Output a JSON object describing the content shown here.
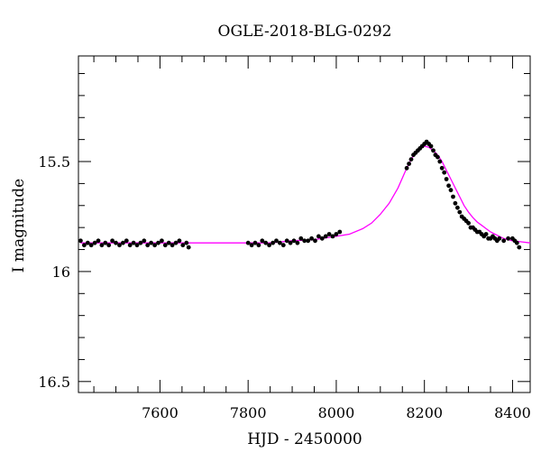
{
  "chart_data": {
    "type": "scatter",
    "title": "OGLE-2018-BLG-0292",
    "xlabel": "HJD - 2450000",
    "ylabel": "I magnitude",
    "xlim": [
      7415,
      8440
    ],
    "ylim": [
      16.55,
      15.02
    ],
    "y_inverted": true,
    "grid": false,
    "legend": "none",
    "x_ticks": [
      "7600",
      "7800",
      "8000",
      "8200",
      "8400"
    ],
    "x_tick_values": [
      7600,
      7800,
      8000,
      8200,
      8400
    ],
    "y_ticks": [
      "15.5",
      "16",
      "16.5"
    ],
    "y_tick_values": [
      15.5,
      16.0,
      16.5
    ],
    "colors": {
      "data": "#000000",
      "model": "#ff00ff",
      "frame": "#000000"
    },
    "series": [
      {
        "kind": "points",
        "x": [
          7420,
          7428,
          7436,
          7444,
          7452,
          7460,
          7468,
          7476,
          7484,
          7492,
          7500,
          7508,
          7516,
          7524,
          7532,
          7540,
          7548,
          7556,
          7564,
          7572,
          7580,
          7588,
          7596,
          7604,
          7612,
          7620,
          7628,
          7636,
          7644,
          7652,
          7660,
          7665,
          7800,
          7808,
          7816,
          7824,
          7832,
          7840,
          7848,
          7856,
          7864,
          7872,
          7880,
          7888,
          7896,
          7904,
          7912,
          7920,
          7928,
          7936,
          7944,
          7952,
          7960,
          7968,
          7976,
          7984,
          7992,
          8000,
          8008,
          8160,
          8165,
          8170,
          8175,
          8180,
          8185,
          8190,
          8195,
          8200,
          8205,
          8210,
          8215,
          8220,
          8225,
          8230,
          8235,
          8240,
          8245,
          8250,
          8255,
          8260,
          8265,
          8270,
          8275,
          8280,
          8285,
          8290,
          8295,
          8300,
          8305,
          8310,
          8315,
          8320,
          8325,
          8330,
          8335,
          8340,
          8345,
          8350,
          8355,
          8360,
          8365,
          8370,
          8380,
          8390,
          8400,
          8405,
          8410,
          8415
        ],
        "y": [
          15.86,
          15.88,
          15.87,
          15.88,
          15.87,
          15.86,
          15.88,
          15.87,
          15.88,
          15.86,
          15.87,
          15.88,
          15.87,
          15.86,
          15.88,
          15.87,
          15.88,
          15.87,
          15.86,
          15.88,
          15.87,
          15.88,
          15.87,
          15.86,
          15.88,
          15.87,
          15.88,
          15.87,
          15.86,
          15.88,
          15.87,
          15.89,
          15.87,
          15.88,
          15.87,
          15.88,
          15.86,
          15.87,
          15.88,
          15.87,
          15.86,
          15.87,
          15.88,
          15.86,
          15.87,
          15.86,
          15.87,
          15.85,
          15.86,
          15.86,
          15.85,
          15.86,
          15.84,
          15.85,
          15.84,
          15.83,
          15.84,
          15.83,
          15.82,
          15.53,
          15.51,
          15.49,
          15.47,
          15.46,
          15.45,
          15.44,
          15.43,
          15.42,
          15.41,
          15.42,
          15.43,
          15.45,
          15.47,
          15.48,
          15.5,
          15.53,
          15.55,
          15.58,
          15.61,
          15.63,
          15.66,
          15.69,
          15.71,
          15.73,
          15.75,
          15.76,
          15.77,
          15.78,
          15.8,
          15.8,
          15.81,
          15.82,
          15.82,
          15.83,
          15.84,
          15.83,
          15.85,
          15.85,
          15.84,
          15.85,
          15.86,
          15.85,
          15.86,
          15.85,
          15.85,
          15.86,
          15.87,
          15.89
        ]
      },
      {
        "kind": "model",
        "x": [
          7420,
          7500,
          7600,
          7700,
          7800,
          7850,
          7900,
          7950,
          8000,
          8030,
          8060,
          8080,
          8100,
          8120,
          8140,
          8160,
          8170,
          8180,
          8190,
          8200,
          8210,
          8220,
          8230,
          8240,
          8250,
          8260,
          8270,
          8280,
          8290,
          8300,
          8310,
          8320,
          8330,
          8340,
          8350,
          8360,
          8370,
          8380,
          8390,
          8400,
          8420,
          8440
        ],
        "y": [
          15.87,
          15.87,
          15.87,
          15.87,
          15.87,
          15.87,
          15.86,
          15.855,
          15.84,
          15.83,
          15.805,
          15.78,
          15.74,
          15.69,
          15.62,
          15.53,
          15.49,
          15.46,
          15.44,
          15.43,
          15.435,
          15.45,
          15.47,
          15.5,
          15.54,
          15.58,
          15.62,
          15.66,
          15.7,
          15.73,
          15.755,
          15.775,
          15.79,
          15.805,
          15.82,
          15.83,
          15.84,
          15.85,
          15.855,
          15.86,
          15.865,
          15.87
        ]
      }
    ]
  }
}
